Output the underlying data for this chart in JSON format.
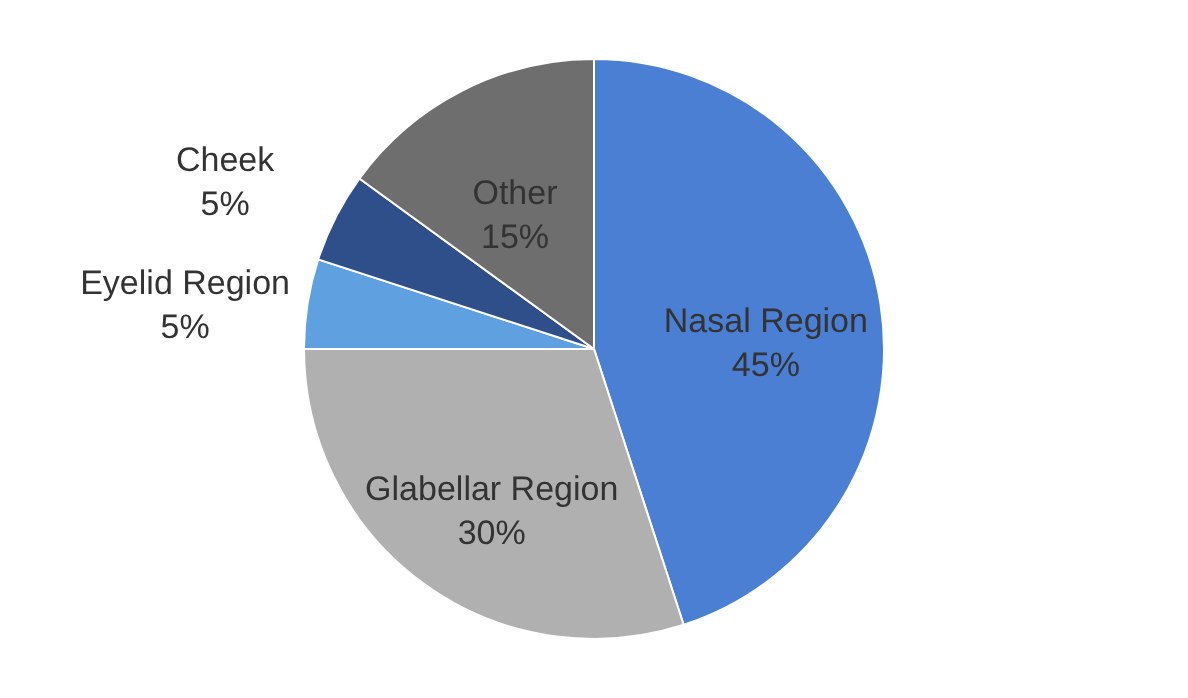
{
  "chart_data": {
    "type": "pie",
    "categories": [
      "Nasal Region",
      "Glabellar Region",
      "Eyelid Region",
      "Cheek",
      "Other"
    ],
    "values": [
      45,
      30,
      5,
      5,
      15
    ],
    "colors": [
      "#4a7fd4",
      "#b0b0b0",
      "#5fa0e0",
      "#2f4f8a",
      "#6e6e6e"
    ],
    "value_labels": [
      "45%",
      "30%",
      "5%",
      "5%",
      "15%"
    ]
  }
}
